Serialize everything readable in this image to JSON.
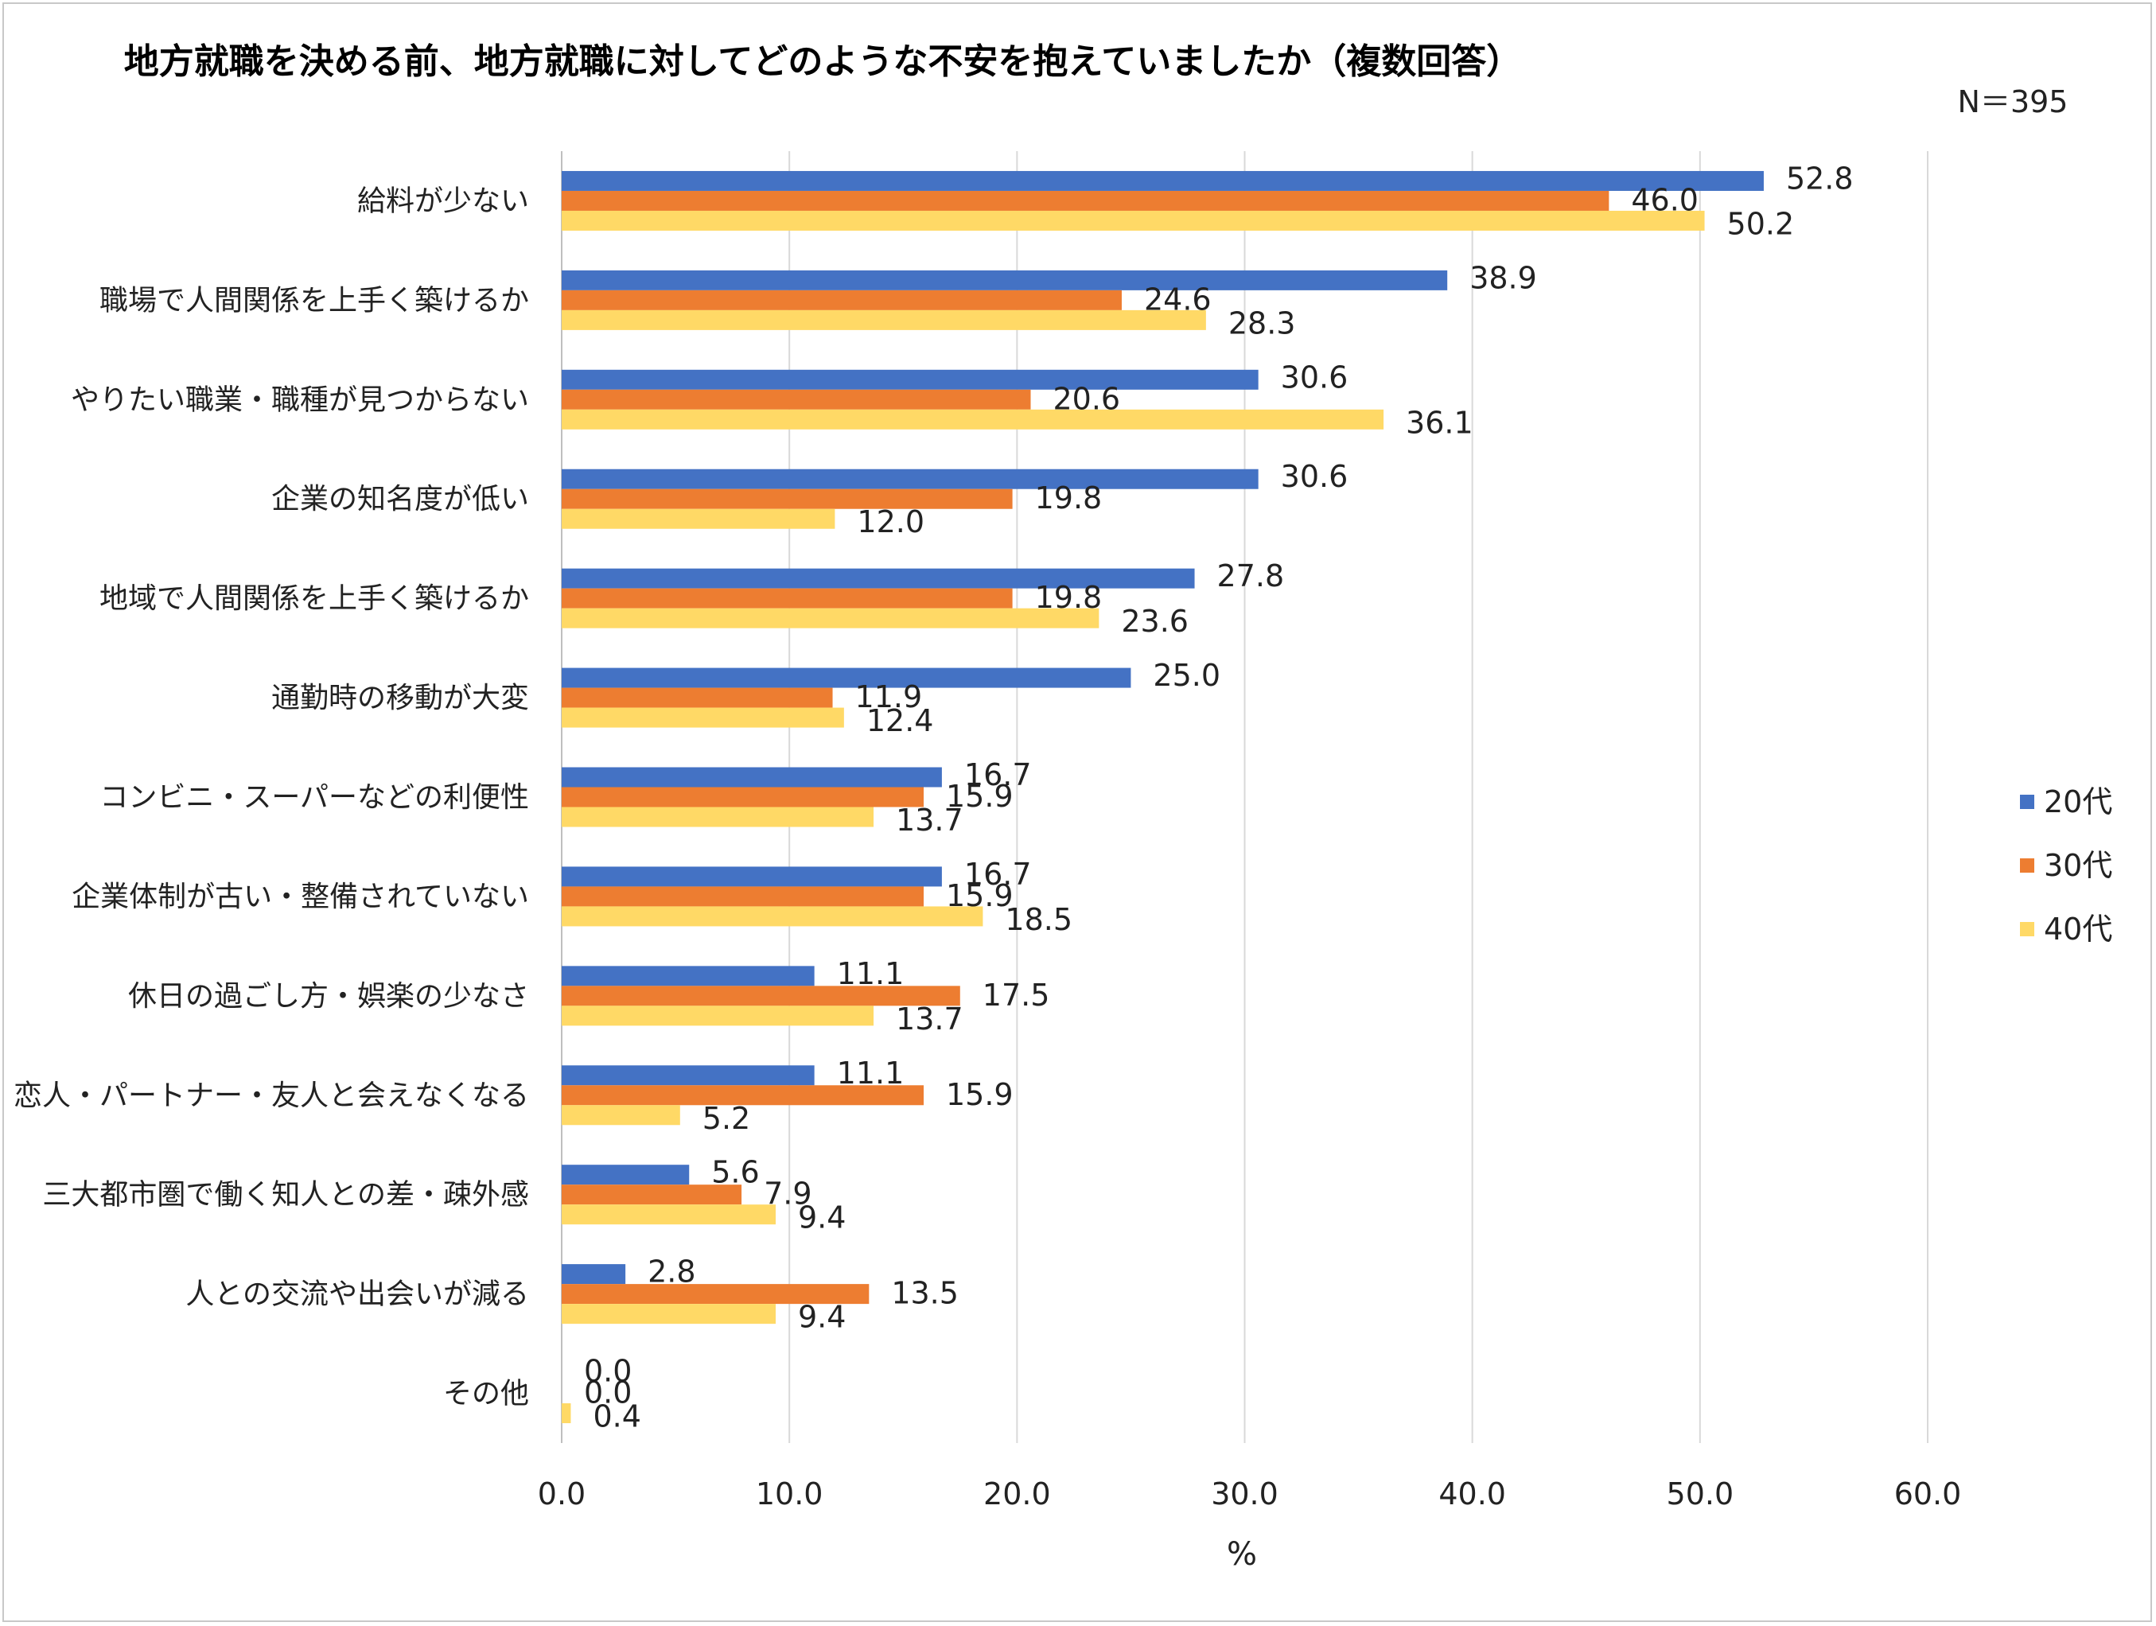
{
  "chart_data": {
    "type": "bar",
    "orientation": "horizontal",
    "title": "地方就職を決める前、地方就職に対してどのような不安を抱えていましたか（複数回答）",
    "note": "N＝395",
    "xlabel": "%",
    "ylabel": "",
    "xlim": [
      0,
      60
    ],
    "x_ticks": [
      "0.0",
      "10.0",
      "20.0",
      "30.0",
      "40.0",
      "50.0",
      "60.0"
    ],
    "grid": "vertical",
    "legend_position": "right",
    "categories": [
      "給料が少ない",
      "職場で人間関係を上手く築けるか",
      "やりたい職業・職種が見つからない",
      "企業の知名度が低い",
      "地域で人間関係を上手く築けるか",
      "通勤時の移動が大変",
      "コンビニ・スーパーなどの利便性",
      "企業体制が古い・整備されていない",
      "休日の過ごし方・娯楽の少なさ",
      "恋人・パートナー・友人と会えなくなる",
      "三大都市圏で働く知人との差・疎外感",
      "人との交流や出会いが減る",
      "その他"
    ],
    "series": [
      {
        "name": "20代",
        "color": "#4472C4",
        "values": [
          52.8,
          38.9,
          30.6,
          30.6,
          27.8,
          25.0,
          16.7,
          16.7,
          11.1,
          11.1,
          5.6,
          2.8,
          0.0
        ],
        "labels": [
          "52.8",
          "38.9",
          "30.6",
          "30.6",
          "27.8",
          "25.0",
          "16.7",
          "16.7",
          "11.1",
          "11.1",
          "5.6",
          "2.8",
          "0.0"
        ]
      },
      {
        "name": "30代",
        "color": "#ED7D31",
        "values": [
          46.0,
          24.6,
          20.6,
          19.8,
          19.8,
          11.9,
          15.9,
          15.9,
          17.5,
          15.9,
          7.9,
          13.5,
          0.0
        ],
        "labels": [
          "46.0",
          "24.6",
          "20.6",
          "19.8",
          "19.8",
          "11.9",
          "15.9",
          "15.9",
          "17.5",
          "15.9",
          "7.9",
          "13.5",
          "0.0"
        ]
      },
      {
        "name": "40代",
        "color": "#FFD966",
        "values": [
          50.2,
          28.3,
          36.1,
          12.0,
          23.6,
          12.4,
          13.7,
          18.5,
          13.7,
          5.2,
          9.4,
          9.4,
          0.4
        ],
        "labels": [
          "50.2",
          "28.3",
          "36.1",
          "12.0",
          "23.6",
          "12.4",
          "13.7",
          "18.5",
          "13.7",
          "5.2",
          "9.4",
          "9.4",
          "0.4"
        ]
      }
    ]
  }
}
